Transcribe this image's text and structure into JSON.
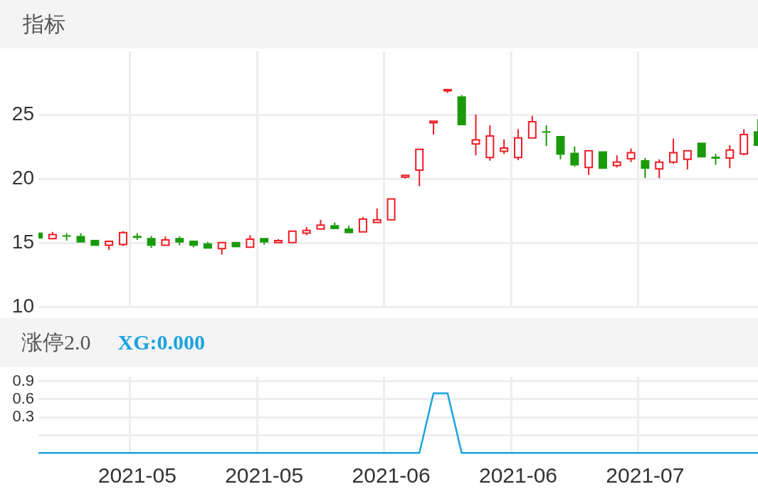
{
  "chart_data": [
    {
      "type": "candlestick",
      "title": "指标",
      "tick_labels": "y",
      "grid": true,
      "categories": [
        null,
        null,
        null,
        null,
        null,
        null,
        null,
        "2021-05",
        null,
        null,
        null,
        null,
        null,
        null,
        null,
        null,
        "2021-05",
        null,
        null,
        null,
        null,
        null,
        null,
        null,
        null,
        "2021-06",
        null,
        null,
        null,
        null,
        null,
        null,
        null,
        null,
        "2021-06",
        null,
        null,
        null,
        null,
        null,
        null,
        null,
        null,
        "2021-07",
        null,
        null,
        null,
        null,
        null,
        null,
        null,
        null
      ],
      "ohlc": [
        [
          15.81,
          15.81,
          15.34,
          15.34
        ],
        [
          15.34,
          15.86,
          15.34,
          15.66
        ],
        [
          15.6,
          15.76,
          15.18,
          15.5
        ],
        [
          15.55,
          15.76,
          15.03,
          15.03
        ],
        [
          15.24,
          15.24,
          14.77,
          14.77
        ],
        [
          14.82,
          15.13,
          14.45,
          15.13
        ],
        [
          14.87,
          15.92,
          14.77,
          15.81
        ],
        [
          15.55,
          15.76,
          15.24,
          15.39
        ],
        [
          15.39,
          15.55,
          14.61,
          14.77
        ],
        [
          14.82,
          15.5,
          14.82,
          15.24
        ],
        [
          15.39,
          15.5,
          14.82,
          15.03
        ],
        [
          15.18,
          15.18,
          14.66,
          14.77
        ],
        [
          14.97,
          15.08,
          14.55,
          14.55
        ],
        [
          14.55,
          15.03,
          14.08,
          15.03
        ],
        [
          15.08,
          15.08,
          14.66,
          14.66
        ],
        [
          14.66,
          15.6,
          14.66,
          15.29
        ],
        [
          15.39,
          15.39,
          14.87,
          15.03
        ],
        [
          15.03,
          15.29,
          15.03,
          15.18
        ],
        [
          15.03,
          15.92,
          15.03,
          15.92
        ],
        [
          15.76,
          16.24,
          15.6,
          15.97
        ],
        [
          16.08,
          16.81,
          16.08,
          16.39
        ],
        [
          16.39,
          16.6,
          16.08,
          16.08
        ],
        [
          16.13,
          16.34,
          15.71,
          15.76
        ],
        [
          15.87,
          17.02,
          15.87,
          16.86
        ],
        [
          16.6,
          17.7,
          16.6,
          16.81
        ],
        [
          16.81,
          18.44,
          16.81,
          18.44
        ],
        [
          20.15,
          20.29,
          20.05,
          20.29
        ],
        [
          20.7,
          22.32,
          19.44,
          22.32
        ],
        [
          24.4,
          24.53,
          23.48,
          24.53
        ],
        [
          26.9,
          27.0,
          26.74,
          27.0
        ],
        [
          26.47,
          26.57,
          24.21,
          24.21
        ],
        [
          22.74,
          25.05,
          21.85,
          23.06
        ],
        [
          21.69,
          24.21,
          21.43,
          23.37
        ],
        [
          22.17,
          23.11,
          21.96,
          22.43
        ],
        [
          21.69,
          23.9,
          21.48,
          23.22
        ],
        [
          23.22,
          24.95,
          23.22,
          24.48
        ],
        [
          23.74,
          24.21,
          22.59,
          23.64
        ],
        [
          23.37,
          23.43,
          21.54,
          21.9
        ],
        [
          22.06,
          22.53,
          20.96,
          21.06
        ],
        [
          20.91,
          22.22,
          20.33,
          22.22
        ],
        [
          22.17,
          22.17,
          20.8,
          20.8
        ],
        [
          21.06,
          21.85,
          20.91,
          21.33
        ],
        [
          21.59,
          22.38,
          21.33,
          22.06
        ],
        [
          21.48,
          21.64,
          20.07,
          20.8
        ],
        [
          20.8,
          21.54,
          20.07,
          21.33
        ],
        [
          21.33,
          23.16,
          21.2,
          22.06
        ],
        [
          21.54,
          22.22,
          20.75,
          22.22
        ],
        [
          22.85,
          22.85,
          21.69,
          21.69
        ],
        [
          21.75,
          21.96,
          21.12,
          21.59
        ],
        [
          21.64,
          22.64,
          20.85,
          22.27
        ],
        [
          21.96,
          23.9,
          21.85,
          23.48
        ],
        [
          23.74,
          24.69,
          22.59,
          22.59
        ]
      ],
      "colors": [
        "#1a9a0a",
        "#ee1c25",
        "#1a9a0a",
        "#1a9a0a",
        "#1a9a0a",
        "#ee1c25",
        "#ee1c25",
        "#1a9a0a",
        "#1a9a0a",
        "#ee1c25",
        "#1a9a0a",
        "#1a9a0a",
        "#1a9a0a",
        "#ee1c25",
        "#1a9a0a",
        "#ee1c25",
        "#1a9a0a",
        "#ee1c25",
        "#ee1c25",
        "#ee1c25",
        "#ee1c25",
        "#1a9a0a",
        "#1a9a0a",
        "#ee1c25",
        "#ee1c25",
        "#ee1c25",
        "#ee1c25",
        "#ee1c25",
        "#ee1c25",
        "#ee1c25",
        "#1a9a0a",
        "#ee1c25",
        "#ee1c25",
        "#ee1c25",
        "#ee1c25",
        "#ee1c25",
        "#1a9a0a",
        "#1a9a0a",
        "#1a9a0a",
        "#ee1c25",
        "#1a9a0a",
        "#ee1c25",
        "#ee1c25",
        "#1a9a0a",
        "#ee1c25",
        "#ee1c25",
        "#ee1c25",
        "#1a9a0a",
        "#1a9a0a",
        "#ee1c25",
        "#ee1c25",
        "#1a9a0a"
      ],
      "ylim": [
        10,
        30
      ],
      "yticks": [
        10,
        15,
        20,
        25
      ]
    },
    {
      "type": "line",
      "title": "涨停2.0",
      "annotations": [
        "XG:0.000"
      ],
      "grid": true,
      "categories": [
        null,
        null,
        null,
        null,
        null,
        null,
        null,
        "2021-05",
        null,
        null,
        null,
        null,
        null,
        null,
        null,
        null,
        "2021-05",
        null,
        null,
        null,
        null,
        null,
        null,
        null,
        null,
        "2021-06",
        null,
        null,
        null,
        null,
        null,
        null,
        null,
        null,
        "2021-06",
        null,
        null,
        null,
        null,
        null,
        null,
        null,
        null,
        "2021-07",
        null,
        null,
        null,
        null,
        null,
        null,
        null,
        null
      ],
      "series": [
        {
          "color": "#1aa3e0",
          "values": [
            -0.3,
            -0.3,
            -0.3,
            -0.3,
            -0.3,
            -0.3,
            -0.3,
            -0.3,
            -0.3,
            -0.3,
            -0.3,
            -0.3,
            -0.3,
            -0.3,
            -0.3,
            -0.3,
            -0.3,
            -0.3,
            -0.3,
            -0.3,
            -0.3,
            -0.3,
            -0.3,
            -0.3,
            -0.3,
            -0.3,
            -0.3,
            -0.3,
            0.7,
            0.7,
            -0.3,
            -0.3,
            -0.3,
            -0.3,
            -0.3,
            -0.3,
            -0.3,
            -0.3,
            -0.3,
            -0.3,
            -0.3,
            -0.3,
            -0.3,
            -0.3,
            -0.3,
            -0.3,
            -0.3,
            -0.3,
            -0.3,
            -0.3,
            -0.3,
            -0.3
          ]
        }
      ],
      "ylim": [
        -0.32,
        0.98
      ],
      "yticks": [
        {
          "value": 0,
          "label": null
        },
        0.3,
        0.6,
        0.9
      ]
    }
  ]
}
